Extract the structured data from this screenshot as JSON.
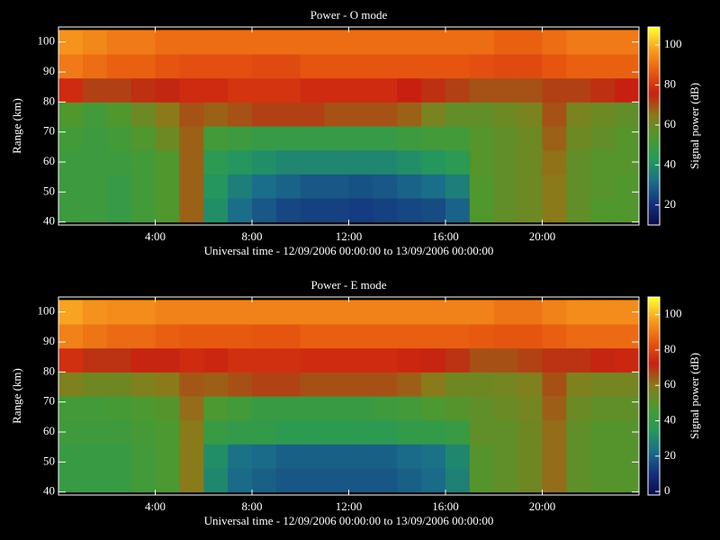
{
  "chart_data": [
    {
      "type": "heatmap",
      "title": "Power - O mode",
      "xlabel": "Universal time - 12/09/2006 00:00:00 to 13/09/2006 00:00:00",
      "ylabel": "Range (km)",
      "colorbar_label": "Signal power (dB)",
      "xbins": [
        0,
        1,
        2,
        3,
        4,
        5,
        6,
        7,
        8,
        9,
        10,
        11,
        12,
        13,
        14,
        15,
        16,
        17,
        18,
        19,
        20,
        21,
        22,
        23,
        24
      ],
      "ybins": [
        40,
        48,
        56,
        64,
        72,
        80,
        88,
        96,
        104
      ],
      "z": [
        [
          50,
          50,
          48,
          52,
          55,
          68,
          40,
          32,
          28,
          25,
          24,
          24,
          23,
          24,
          25,
          26,
          30,
          55,
          58,
          60,
          65,
          58,
          55,
          55
        ],
        [
          50,
          50,
          48,
          52,
          55,
          68,
          42,
          36,
          32,
          30,
          28,
          28,
          27,
          28,
          30,
          32,
          36,
          55,
          58,
          60,
          65,
          58,
          56,
          55
        ],
        [
          50,
          50,
          50,
          52,
          55,
          68,
          45,
          42,
          40,
          38,
          38,
          38,
          38,
          38,
          40,
          42,
          45,
          56,
          58,
          60,
          66,
          58,
          56,
          56
        ],
        [
          52,
          50,
          52,
          55,
          60,
          68,
          52,
          50,
          48,
          48,
          48,
          48,
          48,
          48,
          50,
          52,
          52,
          56,
          58,
          60,
          68,
          60,
          58,
          56
        ],
        [
          55,
          52,
          55,
          60,
          65,
          70,
          68,
          70,
          72,
          72,
          72,
          70,
          70,
          70,
          68,
          62,
          58,
          58,
          60,
          62,
          70,
          62,
          60,
          58
        ],
        [
          78,
          72,
          72,
          74,
          75,
          78,
          78,
          80,
          80,
          80,
          78,
          78,
          78,
          78,
          76,
          74,
          72,
          70,
          70,
          70,
          72,
          72,
          74,
          76
        ],
        [
          92,
          90,
          88,
          88,
          86,
          85,
          85,
          85,
          84,
          84,
          86,
          86,
          86,
          86,
          86,
          86,
          86,
          85,
          84,
          84,
          86,
          88,
          88,
          88
        ],
        [
          96,
          94,
          92,
          92,
          90,
          90,
          90,
          90,
          90,
          90,
          90,
          90,
          90,
          90,
          90,
          90,
          90,
          90,
          88,
          88,
          90,
          92,
          92,
          92
        ]
      ],
      "xlim": [
        0,
        24
      ],
      "ylim": [
        39,
        105
      ],
      "xticks": [
        {
          "value": 4,
          "label": "4:00"
        },
        {
          "value": 8,
          "label": "8:00"
        },
        {
          "value": 12,
          "label": "12:00"
        },
        {
          "value": 16,
          "label": "16:00"
        },
        {
          "value": 20,
          "label": "20:00"
        }
      ],
      "yticks": [
        40,
        50,
        60,
        70,
        80,
        90,
        100
      ],
      "zlim": [
        10,
        109
      ],
      "zticks": [
        20,
        40,
        60,
        80,
        100
      ],
      "colormap": [
        "#0a0a4a",
        "#14307e",
        "#1a6e8a",
        "#259a5a",
        "#4a9a30",
        "#8a7a1a",
        "#c82010",
        "#e85a10",
        "#f8a020",
        "#ffff30"
      ]
    },
    {
      "type": "heatmap",
      "title": "Power - E mode",
      "xlabel": "Universal time - 12/09/2006 00:00:00 to 13/09/2006 00:00:00",
      "ylabel": "Range (km)",
      "colorbar_label": "Signal power (dB)",
      "xbins": [
        0,
        1,
        2,
        3,
        4,
        5,
        6,
        7,
        8,
        9,
        10,
        11,
        12,
        13,
        14,
        15,
        16,
        17,
        18,
        19,
        20,
        21,
        22,
        23,
        24
      ],
      "ybins": [
        40,
        48,
        56,
        64,
        72,
        80,
        88,
        96,
        104
      ],
      "z": [
        [
          42,
          42,
          42,
          45,
          48,
          60,
          30,
          22,
          20,
          18,
          18,
          18,
          18,
          18,
          20,
          22,
          28,
          50,
          52,
          55,
          62,
          52,
          50,
          50
        ],
        [
          42,
          42,
          42,
          45,
          48,
          60,
          32,
          24,
          22,
          20,
          20,
          20,
          20,
          20,
          22,
          24,
          30,
          50,
          52,
          55,
          62,
          52,
          50,
          50
        ],
        [
          44,
          44,
          44,
          46,
          48,
          60,
          42,
          40,
          40,
          38,
          38,
          38,
          38,
          38,
          40,
          40,
          42,
          52,
          52,
          55,
          62,
          52,
          50,
          50
        ],
        [
          45,
          45,
          46,
          48,
          50,
          62,
          48,
          45,
          42,
          42,
          42,
          42,
          42,
          44,
          45,
          48,
          50,
          52,
          54,
          56,
          64,
          54,
          52,
          52
        ],
        [
          58,
          55,
          55,
          58,
          60,
          65,
          64,
          66,
          68,
          68,
          66,
          66,
          66,
          66,
          64,
          60,
          55,
          55,
          56,
          58,
          66,
          58,
          56,
          56
        ],
        [
          76,
          70,
          70,
          72,
          72,
          75,
          74,
          76,
          76,
          76,
          75,
          75,
          75,
          75,
          74,
          72,
          70,
          66,
          66,
          68,
          70,
          70,
          72,
          74
        ],
        [
          92,
          90,
          88,
          88,
          86,
          85,
          85,
          85,
          84,
          84,
          86,
          86,
          86,
          86,
          86,
          86,
          86,
          85,
          84,
          84,
          86,
          88,
          88,
          88
        ],
        [
          98,
          95,
          94,
          94,
          92,
          92,
          92,
          92,
          92,
          92,
          92,
          92,
          92,
          92,
          92,
          92,
          92,
          92,
          90,
          90,
          92,
          94,
          94,
          94
        ]
      ],
      "xlim": [
        0,
        24
      ],
      "ylim": [
        39,
        105
      ],
      "xticks": [
        {
          "value": 4,
          "label": "4:00"
        },
        {
          "value": 8,
          "label": "8:00"
        },
        {
          "value": 12,
          "label": "12:00"
        },
        {
          "value": 16,
          "label": "16:00"
        },
        {
          "value": 20,
          "label": "20:00"
        }
      ],
      "yticks": [
        40,
        50,
        60,
        70,
        80,
        90,
        100
      ],
      "zlim": [
        -2,
        110
      ],
      "zticks": [
        0,
        20,
        40,
        60,
        80,
        100
      ],
      "colormap": [
        "#0a0a4a",
        "#14307e",
        "#1a6e8a",
        "#259a5a",
        "#4a9a30",
        "#8a7a1a",
        "#c82010",
        "#e85a10",
        "#f8a020",
        "#ffff30"
      ]
    }
  ]
}
